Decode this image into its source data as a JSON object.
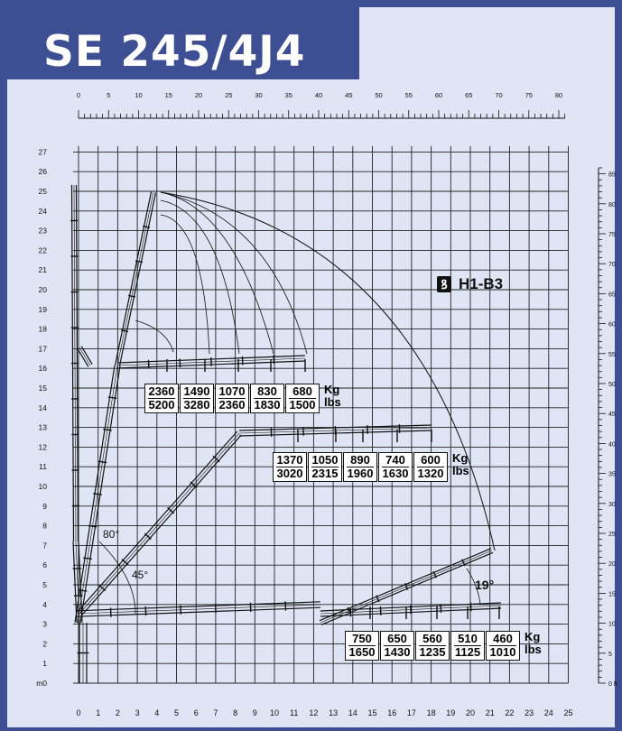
{
  "title": "SE 245/4J4",
  "model_label": "H1-B3",
  "icons": {
    "hook": "hook-icon"
  },
  "colors": {
    "frame": "#3d4e93",
    "panel": "#dfe5f4",
    "grid": "#222222"
  },
  "axes": {
    "top_ft": [
      "0",
      "5",
      "10",
      "15",
      "20",
      "25",
      "30",
      "35",
      "40",
      "45",
      "50",
      "55",
      "60",
      "65",
      "70",
      "75",
      "80"
    ],
    "left_m": [
      "m0",
      "1",
      "2",
      "3",
      "4",
      "5",
      "6",
      "7",
      "8",
      "9",
      "10",
      "11",
      "12",
      "13",
      "14",
      "15",
      "16",
      "17",
      "18",
      "19",
      "20",
      "21",
      "22",
      "23",
      "24",
      "25",
      "26",
      "27"
    ],
    "bottom_m": [
      "0",
      "1",
      "2",
      "3",
      "4",
      "5",
      "6",
      "7",
      "8",
      "9",
      "10",
      "11",
      "12",
      "13",
      "14",
      "15",
      "16",
      "17",
      "18",
      "19",
      "20",
      "21",
      "22",
      "23",
      "24",
      "25"
    ],
    "right_ft": [
      "0 ft",
      "5",
      "10",
      "15",
      "20",
      "25",
      "30",
      "35",
      "40",
      "45",
      "50",
      "55",
      "60",
      "65",
      "70",
      "75",
      "80",
      "85"
    ]
  },
  "angles": {
    "a80": "80°",
    "a45": "45°",
    "a19": "19°"
  },
  "capacity_rows": [
    {
      "kg": [
        "2360",
        "1490",
        "1070",
        "830",
        "680"
      ],
      "lbs": [
        "5200",
        "3280",
        "2360",
        "1830",
        "1500"
      ],
      "kg_unit": "Kg",
      "lbs_unit": "lbs"
    },
    {
      "kg": [
        "1370",
        "1050",
        "890",
        "740",
        "600"
      ],
      "lbs": [
        "3020",
        "2315",
        "1960",
        "1630",
        "1320"
      ],
      "kg_unit": "Kg",
      "lbs_unit": "lbs"
    },
    {
      "kg": [
        "750",
        "650",
        "560",
        "510",
        "460"
      ],
      "lbs": [
        "1650",
        "1430",
        "1235",
        "1125",
        "1010"
      ],
      "kg_unit": "Kg",
      "lbs_unit": "lbs"
    }
  ]
}
